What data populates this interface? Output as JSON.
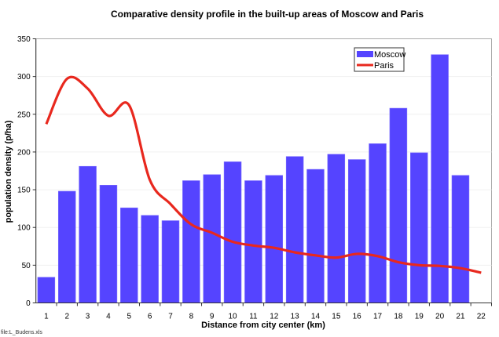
{
  "chart_data": {
    "type": "bar+line",
    "title": "Comparative density profile in the built-up areas of Moscow and Paris",
    "xlabel": "Distance from city center (km)",
    "ylabel": "population density (p/ha)",
    "ylim": [
      0,
      350
    ],
    "yticks": [
      0,
      50,
      100,
      150,
      200,
      250,
      300,
      350
    ],
    "categories": [
      "1",
      "2",
      "3",
      "4",
      "5",
      "6",
      "7",
      "8",
      "9",
      "10",
      "11",
      "12",
      "13",
      "14",
      "15",
      "16",
      "17",
      "18",
      "19",
      "20",
      "21",
      "22"
    ],
    "grid": true,
    "legend_position": "top-right",
    "series": [
      {
        "name": "Moscow",
        "kind": "bar",
        "color": "#5544ff",
        "values": [
          34,
          148,
          181,
          156,
          126,
          116,
          109,
          162,
          170,
          187,
          162,
          169,
          194,
          177,
          197,
          190,
          211,
          258,
          199,
          329,
          169,
          null
        ]
      },
      {
        "name": "Paris",
        "kind": "line",
        "color": "#e8281e",
        "values": [
          237,
          297,
          284,
          248,
          262,
          163,
          131,
          104,
          93,
          81,
          76,
          73,
          67,
          63,
          60,
          65,
          62,
          54,
          50,
          49,
          46,
          40
        ]
      }
    ]
  },
  "footer": "file:L_Budens.xls"
}
